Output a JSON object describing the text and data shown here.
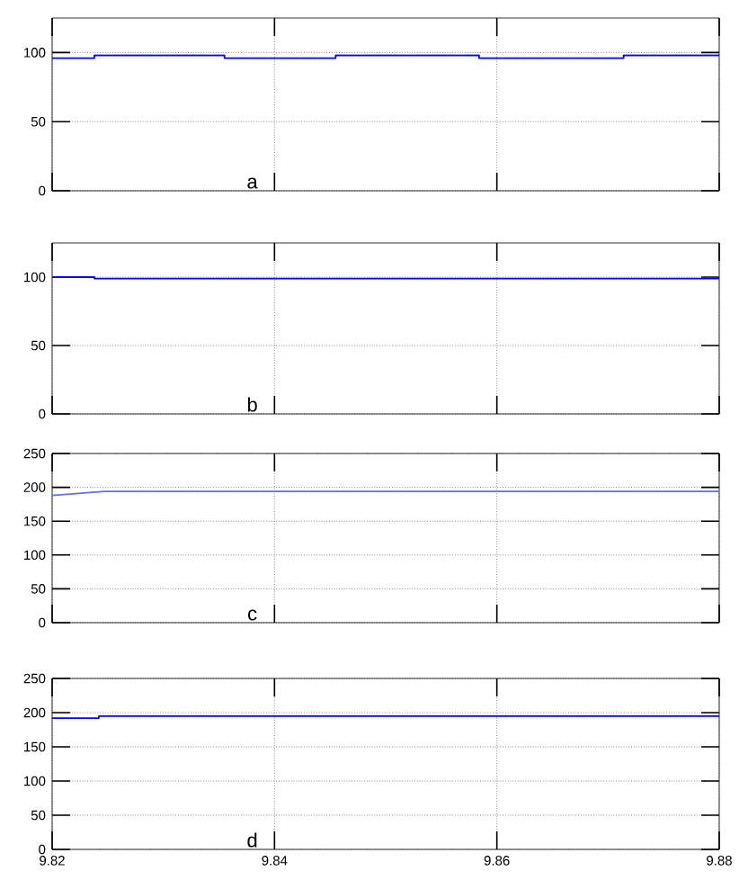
{
  "chart_data": [
    {
      "type": "step",
      "annotations": [
        "a"
      ],
      "xlim": [
        9.82,
        9.88
      ],
      "xticks": [
        9.82,
        9.84,
        9.86,
        9.88
      ],
      "ylim": [
        0,
        125
      ],
      "yticks": [
        0,
        50,
        100
      ],
      "grid": true,
      "tick_labels": "y",
      "series": [
        {
          "color": "#0000ff",
          "x": [
            9.82,
            9.8238,
            9.8355,
            9.8455,
            9.8584,
            9.8714,
            9.88
          ],
          "values": [
            96,
            98,
            96,
            98,
            96,
            98,
            98
          ]
        }
      ]
    },
    {
      "type": "step",
      "annotations": [
        "b"
      ],
      "xlim": [
        9.82,
        9.88
      ],
      "xticks": [
        9.82,
        9.84,
        9.86,
        9.88
      ],
      "ylim": [
        0,
        125
      ],
      "yticks": [
        0,
        50,
        100
      ],
      "grid": true,
      "tick_labels": "y",
      "series": [
        {
          "color": "#0000ff",
          "x": [
            9.82,
            9.8238,
            9.88
          ],
          "values": [
            100,
            99,
            99
          ]
        }
      ]
    },
    {
      "type": "line",
      "annotations": [
        "c"
      ],
      "xlim": [
        9.82,
        9.88
      ],
      "xticks": [
        9.82,
        9.84,
        9.86,
        9.88
      ],
      "ylim": [
        0,
        250
      ],
      "yticks": [
        0,
        50,
        100,
        150,
        200,
        250
      ],
      "grid": true,
      "tick_labels": "y",
      "series": [
        {
          "color": "#6a6af0",
          "x": [
            9.82,
            9.8247,
            9.88
          ],
          "values": [
            188,
            194,
            194
          ]
        }
      ]
    },
    {
      "type": "step",
      "annotations": [
        "d"
      ],
      "xlim": [
        9.82,
        9.88
      ],
      "xticks": [
        9.82,
        9.84,
        9.86,
        9.88
      ],
      "ylim": [
        0,
        250
      ],
      "yticks": [
        0,
        50,
        100,
        150,
        200,
        250
      ],
      "grid": true,
      "series": [
        {
          "color": "#0000ff",
          "x": [
            9.82,
            9.8242,
            9.88
          ],
          "values": [
            192,
            195,
            195
          ]
        }
      ]
    }
  ]
}
